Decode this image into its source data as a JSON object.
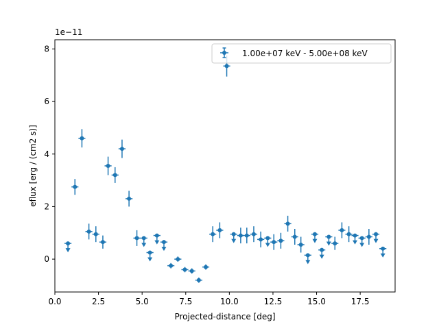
{
  "chart_data": {
    "type": "scatter",
    "xlabel": "Projected-distance [deg]",
    "ylabel": "eflux [erg / (cm2 s)]",
    "y_offset_label": "1e−11",
    "xlim": [
      0,
      19.5
    ],
    "ylim": [
      -1.25,
      8.35
    ],
    "xticks": [
      0.0,
      2.5,
      5.0,
      7.5,
      10.0,
      12.5,
      15.0,
      17.5
    ],
    "xtick_labels": [
      "0.0",
      "2.5",
      "5.0",
      "7.5",
      "10.0",
      "12.5",
      "15.0",
      "17.5"
    ],
    "yticks": [
      0,
      2,
      4,
      6,
      8
    ],
    "ytick_labels": [
      "0",
      "2",
      "4",
      "6",
      "8"
    ],
    "legend_position": "top-right",
    "color": "#1f77b4",
    "series": [
      {
        "name": "1.00e+07 keV - 5.00e+08 keV",
        "points": [
          {
            "x": 0.75,
            "y": 0.6,
            "upper_limit": true
          },
          {
            "x": 1.15,
            "y": 2.75,
            "err": 0.3
          },
          {
            "x": 1.55,
            "y": 4.6,
            "err": 0.35
          },
          {
            "x": 1.95,
            "y": 1.05,
            "err": 0.3
          },
          {
            "x": 2.35,
            "y": 0.95,
            "err": 0.3
          },
          {
            "x": 2.75,
            "y": 0.65,
            "err": 0.25
          },
          {
            "x": 3.05,
            "y": 3.55,
            "err": 0.35
          },
          {
            "x": 3.45,
            "y": 3.2,
            "err": 0.3
          },
          {
            "x": 3.85,
            "y": 4.2,
            "err": 0.35
          },
          {
            "x": 4.25,
            "y": 2.3,
            "err": 0.3
          },
          {
            "x": 4.7,
            "y": 0.8,
            "err": 0.3
          },
          {
            "x": 5.1,
            "y": 0.8,
            "upper_limit": true
          },
          {
            "x": 5.45,
            "y": 0.25,
            "upper_limit": true
          },
          {
            "x": 5.85,
            "y": 0.9,
            "upper_limit": true
          },
          {
            "x": 6.25,
            "y": 0.65,
            "upper_limit": true
          },
          {
            "x": 6.65,
            "y": -0.25,
            "err": 0.1
          },
          {
            "x": 7.05,
            "y": 0.0,
            "err": 0.1
          },
          {
            "x": 7.45,
            "y": -0.4,
            "err": 0.1
          },
          {
            "x": 7.85,
            "y": -0.45,
            "err": 0.1
          },
          {
            "x": 8.25,
            "y": -0.8,
            "err": 0.1
          },
          {
            "x": 8.65,
            "y": -0.3,
            "err": 0.1
          },
          {
            "x": 9.05,
            "y": 0.95,
            "err": 0.3
          },
          {
            "x": 9.45,
            "y": 1.1,
            "err": 0.3
          },
          {
            "x": 9.85,
            "y": 7.35,
            "err": 0.4
          },
          {
            "x": 10.25,
            "y": 0.95,
            "upper_limit": true
          },
          {
            "x": 10.65,
            "y": 0.9,
            "err": 0.3
          },
          {
            "x": 11.0,
            "y": 0.9,
            "err": 0.3
          },
          {
            "x": 11.4,
            "y": 0.95,
            "err": 0.3
          },
          {
            "x": 11.8,
            "y": 0.75,
            "err": 0.3
          },
          {
            "x": 12.2,
            "y": 0.8,
            "upper_limit": true
          },
          {
            "x": 12.55,
            "y": 0.65,
            "err": 0.3
          },
          {
            "x": 12.95,
            "y": 0.7,
            "err": 0.3
          },
          {
            "x": 13.35,
            "y": 1.35,
            "err": 0.3
          },
          {
            "x": 13.75,
            "y": 0.85,
            "err": 0.3
          },
          {
            "x": 14.1,
            "y": 0.55,
            "err": 0.3
          },
          {
            "x": 14.5,
            "y": 0.15,
            "upper_limit": true
          },
          {
            "x": 14.9,
            "y": 0.95,
            "upper_limit": true
          },
          {
            "x": 15.3,
            "y": 0.35,
            "upper_limit": true
          },
          {
            "x": 15.7,
            "y": 0.85,
            "upper_limit": true
          },
          {
            "x": 16.05,
            "y": 0.6,
            "err": 0.25
          },
          {
            "x": 16.45,
            "y": 1.1,
            "err": 0.3
          },
          {
            "x": 16.85,
            "y": 0.95,
            "err": 0.3
          },
          {
            "x": 17.2,
            "y": 0.9,
            "upper_limit": true
          },
          {
            "x": 17.6,
            "y": 0.8,
            "upper_limit": true
          },
          {
            "x": 18.0,
            "y": 0.85,
            "err": 0.3
          },
          {
            "x": 18.4,
            "y": 0.95,
            "upper_limit": true
          },
          {
            "x": 18.8,
            "y": 0.4,
            "upper_limit": true
          }
        ]
      }
    ]
  }
}
